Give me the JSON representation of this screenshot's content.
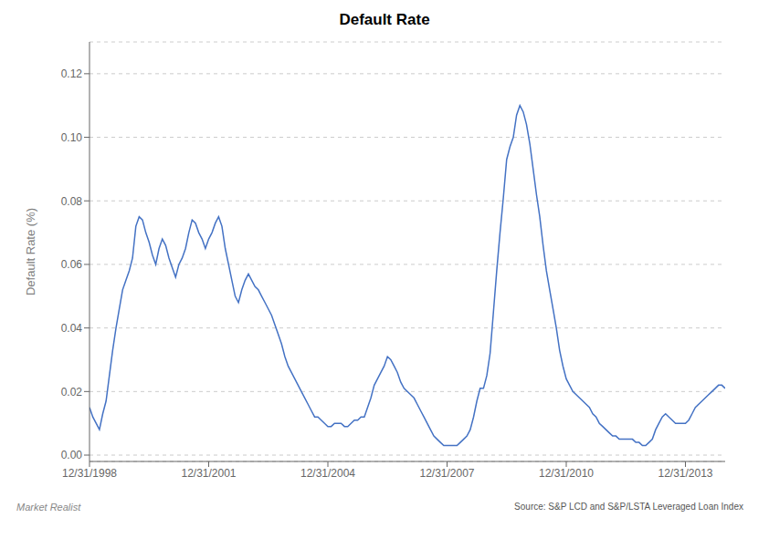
{
  "chart_data": {
    "type": "line",
    "title": "Default Rate",
    "ylabel": "Default Rate (%)",
    "annotations": [
      "Market Realist",
      "Source: S&P LCD and S&P/LSTA Leveraged Loan Index"
    ],
    "color": "#4472C4",
    "grid": true,
    "xlim": [
      1998.0,
      2014.0
    ],
    "xticks": [
      {
        "value": 1998.0,
        "label": "12/31/1998"
      },
      {
        "value": 2001.0,
        "label": "12/31/2001"
      },
      {
        "value": 2004.0,
        "label": "12/31/2004"
      },
      {
        "value": 2007.0,
        "label": "12/31/2007"
      },
      {
        "value": 2010.0,
        "label": "12/31/2010"
      },
      {
        "value": 2013.0,
        "label": "12/31/2013"
      }
    ],
    "ylim": [
      -0.002,
      0.13
    ],
    "yticks": [
      {
        "value": 0.0,
        "label": "0.00"
      },
      0.02,
      0.04,
      0.06,
      0.08,
      {
        "value": 0.1,
        "label": "0.10"
      },
      0.12
    ],
    "x": [
      1998.0,
      1998.083,
      1998.167,
      1998.25,
      1998.333,
      1998.417,
      1998.5,
      1998.583,
      1998.667,
      1998.75,
      1998.833,
      1998.917,
      1999.0,
      1999.083,
      1999.167,
      1999.25,
      1999.333,
      1999.417,
      1999.5,
      1999.583,
      1999.667,
      1999.75,
      1999.833,
      1999.917,
      2000.0,
      2000.083,
      2000.167,
      2000.25,
      2000.333,
      2000.417,
      2000.5,
      2000.583,
      2000.667,
      2000.75,
      2000.833,
      2000.917,
      2001.0,
      2001.083,
      2001.167,
      2001.25,
      2001.333,
      2001.417,
      2001.5,
      2001.583,
      2001.667,
      2001.75,
      2001.833,
      2001.917,
      2002.0,
      2002.083,
      2002.167,
      2002.25,
      2002.333,
      2002.417,
      2002.5,
      2002.583,
      2002.667,
      2002.75,
      2002.833,
      2002.917,
      2003.0,
      2003.083,
      2003.167,
      2003.25,
      2003.333,
      2003.417,
      2003.5,
      2003.583,
      2003.667,
      2003.75,
      2003.833,
      2003.917,
      2004.0,
      2004.083,
      2004.167,
      2004.25,
      2004.333,
      2004.417,
      2004.5,
      2004.583,
      2004.667,
      2004.75,
      2004.833,
      2004.917,
      2005.0,
      2005.083,
      2005.167,
      2005.25,
      2005.333,
      2005.417,
      2005.5,
      2005.583,
      2005.667,
      2005.75,
      2005.833,
      2005.917,
      2006.0,
      2006.083,
      2006.167,
      2006.25,
      2006.333,
      2006.417,
      2006.5,
      2006.583,
      2006.667,
      2006.75,
      2006.833,
      2006.917,
      2007.0,
      2007.083,
      2007.167,
      2007.25,
      2007.333,
      2007.417,
      2007.5,
      2007.583,
      2007.667,
      2007.75,
      2007.833,
      2007.917,
      2008.0,
      2008.083,
      2008.167,
      2008.25,
      2008.333,
      2008.417,
      2008.5,
      2008.583,
      2008.667,
      2008.75,
      2008.833,
      2008.917,
      2009.0,
      2009.083,
      2009.167,
      2009.25,
      2009.333,
      2009.417,
      2009.5,
      2009.583,
      2009.667,
      2009.75,
      2009.833,
      2009.917,
      2010.0,
      2010.083,
      2010.167,
      2010.25,
      2010.333,
      2010.417,
      2010.5,
      2010.583,
      2010.667,
      2010.75,
      2010.833,
      2010.917,
      2011.0,
      2011.083,
      2011.167,
      2011.25,
      2011.333,
      2011.417,
      2011.5,
      2011.583,
      2011.667,
      2011.75,
      2011.833,
      2011.917,
      2012.0,
      2012.083,
      2012.167,
      2012.25,
      2012.333,
      2012.417,
      2012.5,
      2012.583,
      2012.667,
      2012.75,
      2012.833,
      2012.917,
      2013.0,
      2013.083,
      2013.167,
      2013.25,
      2013.333,
      2013.417,
      2013.5,
      2013.583,
      2013.667,
      2013.75,
      2013.833,
      2013.917,
      2014.0
    ],
    "values": [
      0.015,
      0.012,
      0.01,
      0.008,
      0.013,
      0.017,
      0.025,
      0.033,
      0.04,
      0.046,
      0.052,
      0.055,
      0.058,
      0.062,
      0.072,
      0.075,
      0.074,
      0.07,
      0.067,
      0.063,
      0.06,
      0.065,
      0.068,
      0.066,
      0.062,
      0.059,
      0.056,
      0.06,
      0.062,
      0.065,
      0.07,
      0.074,
      0.073,
      0.07,
      0.068,
      0.065,
      0.068,
      0.07,
      0.073,
      0.075,
      0.072,
      0.065,
      0.06,
      0.055,
      0.05,
      0.048,
      0.052,
      0.055,
      0.057,
      0.055,
      0.053,
      0.052,
      0.05,
      0.048,
      0.046,
      0.044,
      0.041,
      0.038,
      0.035,
      0.031,
      0.028,
      0.026,
      0.024,
      0.022,
      0.02,
      0.018,
      0.016,
      0.014,
      0.012,
      0.012,
      0.011,
      0.01,
      0.009,
      0.009,
      0.01,
      0.01,
      0.01,
      0.009,
      0.009,
      0.01,
      0.011,
      0.011,
      0.012,
      0.012,
      0.015,
      0.018,
      0.022,
      0.024,
      0.026,
      0.028,
      0.031,
      0.03,
      0.028,
      0.026,
      0.023,
      0.021,
      0.02,
      0.019,
      0.018,
      0.016,
      0.014,
      0.012,
      0.01,
      0.008,
      0.006,
      0.005,
      0.004,
      0.003,
      0.003,
      0.003,
      0.003,
      0.003,
      0.004,
      0.005,
      0.006,
      0.008,
      0.012,
      0.017,
      0.021,
      0.021,
      0.025,
      0.032,
      0.045,
      0.058,
      0.07,
      0.081,
      0.093,
      0.097,
      0.1,
      0.107,
      0.11,
      0.108,
      0.104,
      0.098,
      0.09,
      0.082,
      0.075,
      0.066,
      0.058,
      0.052,
      0.046,
      0.04,
      0.033,
      0.028,
      0.024,
      0.022,
      0.02,
      0.019,
      0.018,
      0.017,
      0.016,
      0.015,
      0.013,
      0.012,
      0.01,
      0.009,
      0.008,
      0.007,
      0.006,
      0.006,
      0.005,
      0.005,
      0.005,
      0.005,
      0.005,
      0.004,
      0.004,
      0.003,
      0.003,
      0.004,
      0.005,
      0.008,
      0.01,
      0.012,
      0.013,
      0.012,
      0.011,
      0.01,
      0.01,
      0.01,
      0.01,
      0.011,
      0.013,
      0.015,
      0.016,
      0.017,
      0.018,
      0.019,
      0.02,
      0.021,
      0.022,
      0.022,
      0.021
    ]
  }
}
